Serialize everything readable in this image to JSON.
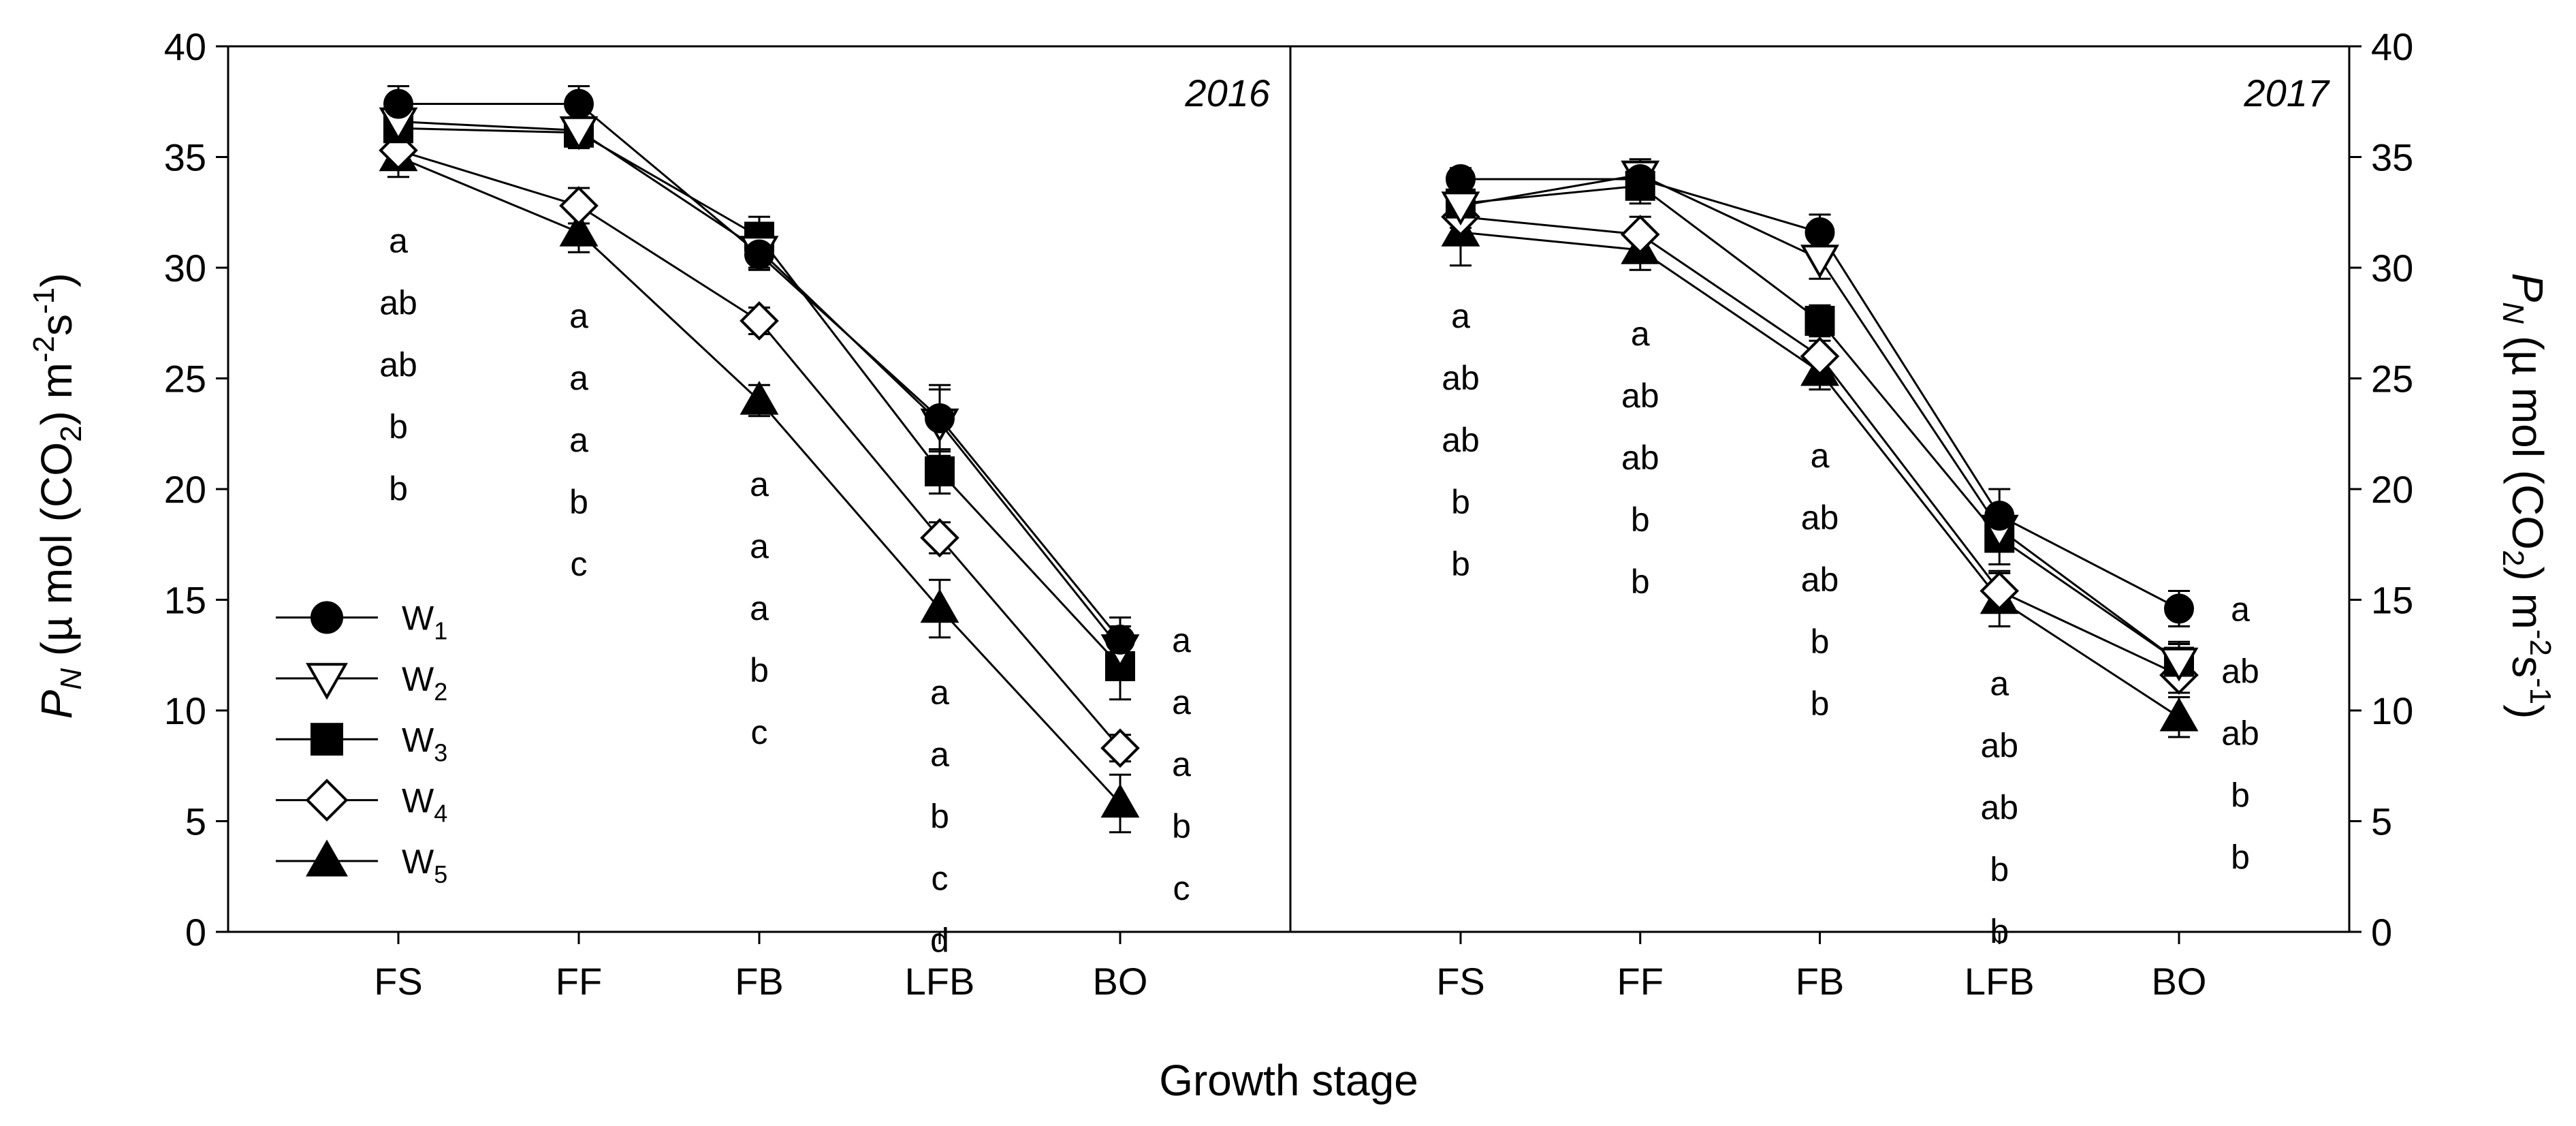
{
  "chart_data": {
    "type": "line",
    "xlabel": "Growth stage",
    "ylabel_left": "P_N (μ mol (CO2) m-2s-1)",
    "ylabel_right": "P_N (μ mol (CO2) m-2s-1)",
    "ylabel_parts": {
      "p": "P",
      "p_sub": "N",
      "unit_pre": " (µ mol (CO",
      "co2_sub": "2",
      "unit_mid": ") m",
      "exp1": "-2",
      "s": "s",
      "exp2": "-1",
      "close": ")"
    },
    "ylim": [
      0,
      40
    ],
    "yticks": [
      "0",
      "5",
      "10",
      "15",
      "20",
      "25",
      "30",
      "35",
      "40"
    ],
    "categories": [
      "FS",
      "FF",
      "FB",
      "LFB",
      "BO"
    ],
    "legend": [
      {
        "base": "W",
        "sub": "1",
        "marker": "filled-circle"
      },
      {
        "base": "W",
        "sub": "2",
        "marker": "open-triangle-down"
      },
      {
        "base": "W",
        "sub": "3",
        "marker": "filled-square"
      },
      {
        "base": "W",
        "sub": "4",
        "marker": "open-diamond"
      },
      {
        "base": "W",
        "sub": "5",
        "marker": "filled-triangle-up"
      }
    ],
    "panels": [
      {
        "title": "2016",
        "series": [
          {
            "name": "W1",
            "values": [
              37.4,
              37.4,
              30.6,
              23.2,
              13.2
            ],
            "errors": [
              0.8,
              0.8,
              0.7,
              1.5,
              1.0
            ]
          },
          {
            "name": "W2",
            "values": [
              36.6,
              36.2,
              30.8,
              23.0,
              12.8
            ],
            "errors": [
              0.6,
              0.8,
              0.8,
              1.5,
              1.0
            ]
          },
          {
            "name": "W3",
            "values": [
              36.3,
              36.1,
              31.4,
              20.8,
              12.0
            ],
            "errors": [
              0.8,
              0.7,
              0.9,
              1.0,
              1.5
            ]
          },
          {
            "name": "W4",
            "values": [
              35.3,
              32.8,
              27.6,
              17.8,
              8.3
            ],
            "errors": [
              0.6,
              0.8,
              0.6,
              0.7,
              0.6
            ]
          },
          {
            "name": "W5",
            "values": [
              35.0,
              31.6,
              24.0,
              14.6,
              5.8
            ],
            "errors": [
              0.9,
              0.9,
              0.7,
              1.3,
              1.3
            ]
          }
        ],
        "letters": [
          [
            "a",
            "ab",
            "ab",
            "b",
            "b"
          ],
          [
            "a",
            "a",
            "a",
            "b",
            "c"
          ],
          [
            "a",
            "a",
            "a",
            "b",
            "c"
          ],
          [
            "a",
            "a",
            "b",
            "c",
            "d"
          ],
          [
            "a",
            "a",
            "a",
            "b",
            "c"
          ]
        ]
      },
      {
        "title": "2017",
        "series": [
          {
            "name": "W1",
            "values": [
              34.0,
              34.0,
              31.6,
              18.8,
              14.6
            ],
            "errors": [
              0.5,
              0.6,
              0.8,
              1.2,
              0.8
            ]
          },
          {
            "name": "W2",
            "values": [
              32.8,
              34.2,
              30.4,
              18.2,
              12.2
            ],
            "errors": [
              0.6,
              0.7,
              0.9,
              1.0,
              0.8
            ]
          },
          {
            "name": "W3",
            "values": [
              32.9,
              33.7,
              27.6,
              17.8,
              12.2
            ],
            "errors": [
              0.6,
              0.8,
              0.7,
              1.2,
              0.9
            ]
          },
          {
            "name": "W4",
            "values": [
              32.3,
              31.5,
              26.0,
              15.4,
              11.6
            ],
            "errors": [
              0.5,
              0.8,
              0.7,
              0.9,
              0.8
            ]
          },
          {
            "name": "W5",
            "values": [
              31.6,
              30.8,
              25.3,
              15.0,
              9.7
            ],
            "errors": [
              1.5,
              0.9,
              0.8,
              1.2,
              0.9
            ]
          }
        ],
        "letters": [
          [
            "a",
            "ab",
            "ab",
            "b",
            "b"
          ],
          [
            "a",
            "ab",
            "ab",
            "b",
            "b"
          ],
          [
            "a",
            "ab",
            "ab",
            "b",
            "b"
          ],
          [
            "a",
            "ab",
            "ab",
            "b",
            "b"
          ],
          [
            "a",
            "ab",
            "ab",
            "b",
            "b"
          ]
        ]
      }
    ]
  }
}
